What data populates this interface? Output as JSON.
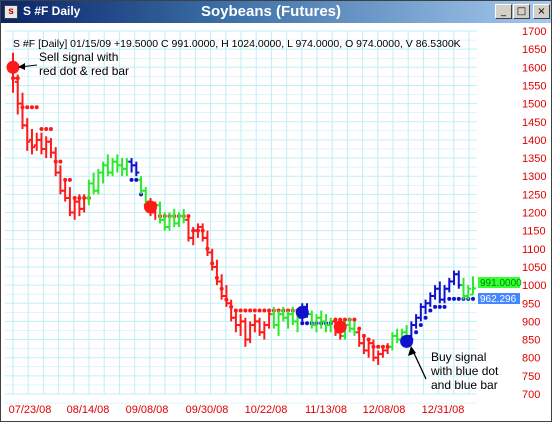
{
  "window": {
    "title": "S #F Daily",
    "chart_title": "Soybeans (Futures)",
    "buttons": {
      "minimize": "_",
      "maximize": "□",
      "close": "×"
    }
  },
  "colors": {
    "grid": "#bfeff6",
    "sell": "#ff1a1a",
    "buy": "#1111cc",
    "neutral": "#2ee82e",
    "axis_text": "#e00000",
    "price_box_green": "#33ff33",
    "price_box_blue": "#4488ff"
  },
  "chart_data": {
    "type": "bar",
    "subtitle": "S #F [Daily] 01/15/09 +19.5000 C 991.0000, H 1024.0000, L 974.0000, O 974.0000, V 86.5300K",
    "ylim": [
      700,
      1700
    ],
    "y_ticks": [
      700,
      750,
      800,
      850,
      900,
      950,
      1000,
      1050,
      1100,
      1150,
      1200,
      1250,
      1300,
      1350,
      1400,
      1450,
      1500,
      1550,
      1600,
      1650,
      1700
    ],
    "x_ticks": [
      "07/23/08",
      "08/14/08",
      "09/08/08",
      "09/30/08",
      "10/22/08",
      "11/13/08",
      "12/08/08",
      "12/31/08"
    ],
    "close_label": "991.0000",
    "stop_label": "962.296",
    "annotations": [
      {
        "id": "sell",
        "lines": [
          "Sell signal with",
          "red dot & red bar"
        ]
      },
      {
        "id": "buy",
        "lines": [
          "Buy signal",
          "with blue dot",
          "and blue bar"
        ]
      }
    ],
    "bars": [
      {
        "c": "r",
        "o": 1600,
        "h": 1640,
        "l": 1530,
        "cl": 1570
      },
      {
        "c": "r",
        "o": 1560,
        "h": 1580,
        "l": 1470,
        "cl": 1500
      },
      {
        "c": "r",
        "o": 1500,
        "h": 1530,
        "l": 1430,
        "cl": 1440
      },
      {
        "c": "r",
        "o": 1440,
        "h": 1460,
        "l": 1370,
        "cl": 1395
      },
      {
        "c": "r",
        "o": 1400,
        "h": 1430,
        "l": 1360,
        "cl": 1380
      },
      {
        "c": "r",
        "o": 1385,
        "h": 1420,
        "l": 1370,
        "cl": 1400
      },
      {
        "c": "r",
        "o": 1400,
        "h": 1420,
        "l": 1360,
        "cl": 1375
      },
      {
        "c": "r",
        "o": 1375,
        "h": 1410,
        "l": 1350,
        "cl": 1395
      },
      {
        "c": "r",
        "o": 1395,
        "h": 1405,
        "l": 1350,
        "cl": 1365
      },
      {
        "c": "r",
        "o": 1365,
        "h": 1380,
        "l": 1300,
        "cl": 1310
      },
      {
        "c": "r",
        "o": 1310,
        "h": 1330,
        "l": 1250,
        "cl": 1260
      },
      {
        "c": "r",
        "o": 1260,
        "h": 1290,
        "l": 1230,
        "cl": 1240
      },
      {
        "c": "r",
        "o": 1240,
        "h": 1270,
        "l": 1190,
        "cl": 1200
      },
      {
        "c": "r",
        "o": 1200,
        "h": 1240,
        "l": 1180,
        "cl": 1230
      },
      {
        "c": "r",
        "o": 1230,
        "h": 1250,
        "l": 1190,
        "cl": 1210
      },
      {
        "c": "r",
        "o": 1210,
        "h": 1250,
        "l": 1200,
        "cl": 1240
      },
      {
        "c": "g",
        "o": 1240,
        "h": 1290,
        "l": 1220,
        "cl": 1280
      },
      {
        "c": "g",
        "o": 1280,
        "h": 1310,
        "l": 1250,
        "cl": 1260
      },
      {
        "c": "g",
        "o": 1260,
        "h": 1320,
        "l": 1250,
        "cl": 1310
      },
      {
        "c": "g",
        "o": 1310,
        "h": 1340,
        "l": 1280,
        "cl": 1330
      },
      {
        "c": "g",
        "o": 1330,
        "h": 1360,
        "l": 1300,
        "cl": 1310
      },
      {
        "c": "g",
        "o": 1310,
        "h": 1350,
        "l": 1300,
        "cl": 1340
      },
      {
        "c": "g",
        "o": 1340,
        "h": 1360,
        "l": 1310,
        "cl": 1330
      },
      {
        "c": "g",
        "o": 1330,
        "h": 1350,
        "l": 1300,
        "cl": 1320
      },
      {
        "c": "g",
        "o": 1320,
        "h": 1350,
        "l": 1300,
        "cl": 1340
      },
      {
        "c": "b",
        "o": 1340,
        "h": 1350,
        "l": 1310,
        "cl": 1330
      },
      {
        "c": "b",
        "o": 1330,
        "h": 1340,
        "l": 1300,
        "cl": 1310
      },
      {
        "c": "g",
        "o": 1290,
        "h": 1300,
        "l": 1250,
        "cl": 1260
      },
      {
        "c": "g",
        "o": 1260,
        "h": 1270,
        "l": 1220,
        "cl": 1230
      },
      {
        "c": "r",
        "o": 1230,
        "h": 1240,
        "l": 1190,
        "cl": 1200
      },
      {
        "c": "r",
        "o": 1200,
        "h": 1230,
        "l": 1180,
        "cl": 1220
      },
      {
        "c": "g",
        "o": 1220,
        "h": 1230,
        "l": 1170,
        "cl": 1180
      },
      {
        "c": "g",
        "o": 1180,
        "h": 1200,
        "l": 1150,
        "cl": 1160
      },
      {
        "c": "g",
        "o": 1160,
        "h": 1200,
        "l": 1150,
        "cl": 1190
      },
      {
        "c": "g",
        "o": 1190,
        "h": 1210,
        "l": 1160,
        "cl": 1170
      },
      {
        "c": "g",
        "o": 1170,
        "h": 1200,
        "l": 1160,
        "cl": 1190
      },
      {
        "c": "g",
        "o": 1190,
        "h": 1210,
        "l": 1170,
        "cl": 1180
      },
      {
        "c": "r",
        "o": 1180,
        "h": 1190,
        "l": 1120,
        "cl": 1130
      },
      {
        "c": "r",
        "o": 1130,
        "h": 1160,
        "l": 1110,
        "cl": 1150
      },
      {
        "c": "r",
        "o": 1150,
        "h": 1170,
        "l": 1130,
        "cl": 1160
      },
      {
        "c": "r",
        "o": 1160,
        "h": 1170,
        "l": 1120,
        "cl": 1130
      },
      {
        "c": "r",
        "o": 1130,
        "h": 1150,
        "l": 1080,
        "cl": 1090
      },
      {
        "c": "r",
        "o": 1090,
        "h": 1100,
        "l": 1040,
        "cl": 1050
      },
      {
        "c": "r",
        "o": 1050,
        "h": 1070,
        "l": 1000,
        "cl": 1010
      },
      {
        "c": "r",
        "o": 1010,
        "h": 1030,
        "l": 960,
        "cl": 970
      },
      {
        "c": "r",
        "o": 970,
        "h": 1000,
        "l": 940,
        "cl": 950
      },
      {
        "c": "r",
        "o": 950,
        "h": 960,
        "l": 900,
        "cl": 910
      },
      {
        "c": "r",
        "o": 910,
        "h": 930,
        "l": 870,
        "cl": 890
      },
      {
        "c": "r",
        "o": 890,
        "h": 920,
        "l": 860,
        "cl": 900
      },
      {
        "c": "r",
        "o": 900,
        "h": 910,
        "l": 830,
        "cl": 850
      },
      {
        "c": "r",
        "o": 850,
        "h": 900,
        "l": 840,
        "cl": 890
      },
      {
        "c": "r",
        "o": 890,
        "h": 920,
        "l": 870,
        "cl": 900
      },
      {
        "c": "r",
        "o": 900,
        "h": 910,
        "l": 860,
        "cl": 870
      },
      {
        "c": "r",
        "o": 870,
        "h": 900,
        "l": 850,
        "cl": 890
      },
      {
        "c": "r",
        "o": 890,
        "h": 930,
        "l": 880,
        "cl": 920
      },
      {
        "c": "g",
        "o": 920,
        "h": 940,
        "l": 880,
        "cl": 890
      },
      {
        "c": "g",
        "o": 890,
        "h": 930,
        "l": 860,
        "cl": 920
      },
      {
        "c": "g",
        "o": 920,
        "h": 940,
        "l": 900,
        "cl": 910
      },
      {
        "c": "g",
        "o": 910,
        "h": 930,
        "l": 880,
        "cl": 920
      },
      {
        "c": "g",
        "o": 920,
        "h": 940,
        "l": 890,
        "cl": 900
      },
      {
        "c": "g",
        "o": 900,
        "h": 920,
        "l": 870,
        "cl": 910
      },
      {
        "c": "b",
        "o": 910,
        "h": 950,
        "l": 900,
        "cl": 940
      },
      {
        "c": "b",
        "o": 940,
        "h": 950,
        "l": 910,
        "cl": 920
      },
      {
        "c": "g",
        "o": 920,
        "h": 930,
        "l": 880,
        "cl": 890
      },
      {
        "c": "g",
        "o": 890,
        "h": 920,
        "l": 870,
        "cl": 910
      },
      {
        "c": "g",
        "o": 910,
        "h": 930,
        "l": 880,
        "cl": 900
      },
      {
        "c": "g",
        "o": 900,
        "h": 920,
        "l": 870,
        "cl": 890
      },
      {
        "c": "g",
        "o": 890,
        "h": 910,
        "l": 870,
        "cl": 900
      },
      {
        "c": "r",
        "o": 900,
        "h": 910,
        "l": 860,
        "cl": 870
      },
      {
        "c": "r",
        "o": 870,
        "h": 890,
        "l": 850,
        "cl": 860
      },
      {
        "c": "g",
        "o": 860,
        "h": 900,
        "l": 850,
        "cl": 890
      },
      {
        "c": "g",
        "o": 890,
        "h": 910,
        "l": 870,
        "cl": 880
      },
      {
        "c": "g",
        "o": 880,
        "h": 900,
        "l": 860,
        "cl": 870
      },
      {
        "c": "r",
        "o": 870,
        "h": 880,
        "l": 830,
        "cl": 840
      },
      {
        "c": "r",
        "o": 840,
        "h": 860,
        "l": 810,
        "cl": 820
      },
      {
        "c": "r",
        "o": 820,
        "h": 850,
        "l": 800,
        "cl": 840
      },
      {
        "c": "r",
        "o": 840,
        "h": 850,
        "l": 790,
        "cl": 800
      },
      {
        "c": "r",
        "o": 800,
        "h": 820,
        "l": 780,
        "cl": 810
      },
      {
        "c": "r",
        "o": 810,
        "h": 830,
        "l": 800,
        "cl": 820
      },
      {
        "c": "r",
        "o": 820,
        "h": 840,
        "l": 810,
        "cl": 830
      },
      {
        "c": "g",
        "o": 830,
        "h": 870,
        "l": 820,
        "cl": 860
      },
      {
        "c": "g",
        "o": 860,
        "h": 880,
        "l": 840,
        "cl": 850
      },
      {
        "c": "g",
        "o": 850,
        "h": 880,
        "l": 840,
        "cl": 870
      },
      {
        "c": "g",
        "o": 870,
        "h": 890,
        "l": 850,
        "cl": 860
      },
      {
        "c": "b",
        "o": 860,
        "h": 900,
        "l": 850,
        "cl": 890
      },
      {
        "c": "b",
        "o": 890,
        "h": 920,
        "l": 880,
        "cl": 910
      },
      {
        "c": "b",
        "o": 910,
        "h": 950,
        "l": 900,
        "cl": 940
      },
      {
        "c": "b",
        "o": 940,
        "h": 960,
        "l": 920,
        "cl": 950
      },
      {
        "c": "b",
        "o": 950,
        "h": 980,
        "l": 940,
        "cl": 970
      },
      {
        "c": "b",
        "o": 970,
        "h": 1000,
        "l": 960,
        "cl": 990
      },
      {
        "c": "b",
        "o": 990,
        "h": 1010,
        "l": 950,
        "cl": 960
      },
      {
        "c": "b",
        "o": 960,
        "h": 1000,
        "l": 950,
        "cl": 990
      },
      {
        "c": "b",
        "o": 990,
        "h": 1020,
        "l": 980,
        "cl": 1010
      },
      {
        "c": "b",
        "o": 1010,
        "h": 1040,
        "l": 1000,
        "cl": 1030
      },
      {
        "c": "b",
        "o": 1030,
        "h": 1040,
        "l": 990,
        "cl": 1000
      },
      {
        "c": "g",
        "o": 1000,
        "h": 1020,
        "l": 960,
        "cl": 970
      },
      {
        "c": "g",
        "o": 970,
        "h": 1000,
        "l": 960,
        "cl": 990
      },
      {
        "c": "g",
        "o": 974,
        "h": 1024,
        "l": 974,
        "cl": 991
      }
    ],
    "stops": [
      {
        "i": 0,
        "v": 1570,
        "c": "r"
      },
      {
        "i": 1,
        "v": 1570,
        "c": "r"
      },
      {
        "i": 2,
        "v": 1490,
        "c": "r"
      },
      {
        "i": 3,
        "v": 1490,
        "c": "r"
      },
      {
        "i": 4,
        "v": 1490,
        "c": "r"
      },
      {
        "i": 5,
        "v": 1490,
        "c": "r"
      },
      {
        "i": 6,
        "v": 1430,
        "c": "r"
      },
      {
        "i": 7,
        "v": 1430,
        "c": "r"
      },
      {
        "i": 8,
        "v": 1430,
        "c": "r"
      },
      {
        "i": 9,
        "v": 1340,
        "c": "r"
      },
      {
        "i": 10,
        "v": 1340,
        "c": "r"
      },
      {
        "i": 11,
        "v": 1290,
        "c": "r"
      },
      {
        "i": 12,
        "v": 1290,
        "c": "r"
      },
      {
        "i": 13,
        "v": 1240,
        "c": "r"
      },
      {
        "i": 14,
        "v": 1240,
        "c": "r"
      },
      {
        "i": 15,
        "v": 1240,
        "c": "r"
      },
      {
        "i": 16,
        "v": 1240,
        "c": "r"
      },
      {
        "i": 25,
        "v": 1290,
        "c": "b"
      },
      {
        "i": 26,
        "v": 1290,
        "c": "b"
      },
      {
        "i": 27,
        "v": 1250,
        "c": "b"
      },
      {
        "i": 28,
        "v": 1220,
        "c": "r"
      },
      {
        "i": 29,
        "v": 1220,
        "c": "r"
      },
      {
        "i": 30,
        "v": 1220,
        "c": "r"
      },
      {
        "i": 31,
        "v": 1190,
        "c": "r"
      },
      {
        "i": 32,
        "v": 1190,
        "c": "r"
      },
      {
        "i": 33,
        "v": 1190,
        "c": "r"
      },
      {
        "i": 34,
        "v": 1190,
        "c": "r"
      },
      {
        "i": 35,
        "v": 1190,
        "c": "r"
      },
      {
        "i": 36,
        "v": 1190,
        "c": "r"
      },
      {
        "i": 37,
        "v": 1190,
        "c": "r"
      },
      {
        "i": 38,
        "v": 1150,
        "c": "r"
      },
      {
        "i": 39,
        "v": 1150,
        "c": "r"
      },
      {
        "i": 40,
        "v": 1150,
        "c": "r"
      },
      {
        "i": 41,
        "v": 1100,
        "c": "r"
      },
      {
        "i": 42,
        "v": 1060,
        "c": "r"
      },
      {
        "i": 43,
        "v": 1020,
        "c": "r"
      },
      {
        "i": 44,
        "v": 990,
        "c": "r"
      },
      {
        "i": 45,
        "v": 960,
        "c": "r"
      },
      {
        "i": 46,
        "v": 940,
        "c": "r"
      },
      {
        "i": 47,
        "v": 930,
        "c": "r"
      },
      {
        "i": 48,
        "v": 930,
        "c": "r"
      },
      {
        "i": 49,
        "v": 930,
        "c": "r"
      },
      {
        "i": 50,
        "v": 930,
        "c": "r"
      },
      {
        "i": 51,
        "v": 930,
        "c": "r"
      },
      {
        "i": 52,
        "v": 930,
        "c": "r"
      },
      {
        "i": 53,
        "v": 930,
        "c": "r"
      },
      {
        "i": 54,
        "v": 930,
        "c": "r"
      },
      {
        "i": 55,
        "v": 930,
        "c": "r"
      },
      {
        "i": 56,
        "v": 930,
        "c": "r"
      },
      {
        "i": 57,
        "v": 930,
        "c": "r"
      },
      {
        "i": 58,
        "v": 930,
        "c": "r"
      },
      {
        "i": 59,
        "v": 930,
        "c": "r"
      },
      {
        "i": 60,
        "v": 930,
        "c": "r"
      },
      {
        "i": 61,
        "v": 895,
        "c": "b"
      },
      {
        "i": 62,
        "v": 895,
        "c": "b"
      },
      {
        "i": 63,
        "v": 895,
        "c": "b"
      },
      {
        "i": 64,
        "v": 895,
        "c": "b"
      },
      {
        "i": 65,
        "v": 895,
        "c": "b"
      },
      {
        "i": 66,
        "v": 895,
        "c": "b"
      },
      {
        "i": 67,
        "v": 895,
        "c": "b"
      },
      {
        "i": 68,
        "v": 905,
        "c": "r"
      },
      {
        "i": 69,
        "v": 905,
        "c": "r"
      },
      {
        "i": 70,
        "v": 905,
        "c": "r"
      },
      {
        "i": 71,
        "v": 905,
        "c": "r"
      },
      {
        "i": 72,
        "v": 905,
        "c": "r"
      },
      {
        "i": 73,
        "v": 880,
        "c": "r"
      },
      {
        "i": 74,
        "v": 860,
        "c": "r"
      },
      {
        "i": 75,
        "v": 850,
        "c": "r"
      },
      {
        "i": 76,
        "v": 830,
        "c": "r"
      },
      {
        "i": 77,
        "v": 830,
        "c": "r"
      },
      {
        "i": 78,
        "v": 830,
        "c": "r"
      },
      {
        "i": 79,
        "v": 830,
        "c": "r"
      },
      {
        "i": 84,
        "v": 850,
        "c": "b"
      },
      {
        "i": 85,
        "v": 870,
        "c": "b"
      },
      {
        "i": 86,
        "v": 890,
        "c": "b"
      },
      {
        "i": 87,
        "v": 910,
        "c": "b"
      },
      {
        "i": 88,
        "v": 930,
        "c": "b"
      },
      {
        "i": 89,
        "v": 940,
        "c": "b"
      },
      {
        "i": 90,
        "v": 940,
        "c": "b"
      },
      {
        "i": 91,
        "v": 940,
        "c": "b"
      },
      {
        "i": 92,
        "v": 962,
        "c": "b"
      },
      {
        "i": 93,
        "v": 962,
        "c": "b"
      },
      {
        "i": 94,
        "v": 962,
        "c": "b"
      },
      {
        "i": 95,
        "v": 962,
        "c": "b"
      },
      {
        "i": 96,
        "v": 962,
        "c": "b"
      },
      {
        "i": 97,
        "v": 962,
        "c": "b"
      }
    ],
    "signals": [
      {
        "i": 0,
        "v": 1600,
        "c": "r"
      },
      {
        "i": 29,
        "v": 1215,
        "c": "r"
      },
      {
        "i": 61,
        "v": 925,
        "c": "b"
      },
      {
        "i": 69,
        "v": 885,
        "c": "r"
      },
      {
        "i": 83,
        "v": 845,
        "c": "b"
      }
    ]
  }
}
